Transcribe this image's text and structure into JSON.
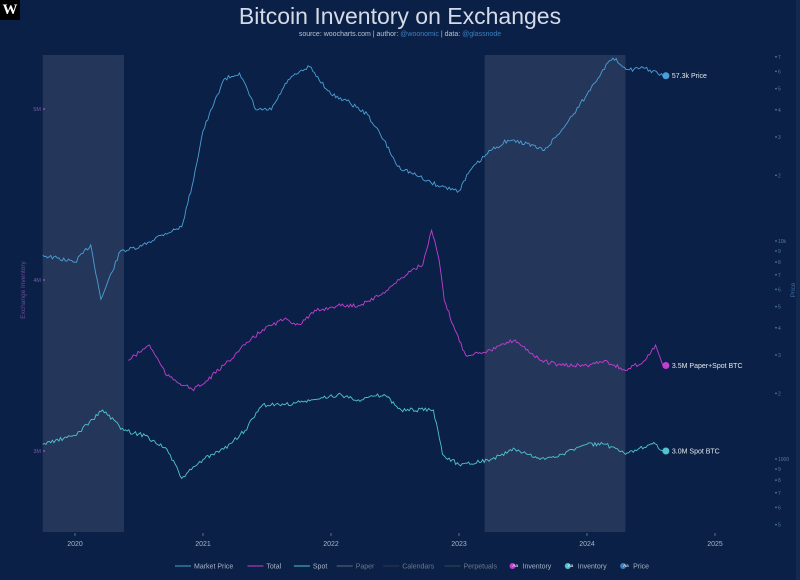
{
  "logo": "W",
  "chart_data": {
    "type": "line",
    "title": "Bitcoin Inventory on Exchanges",
    "subtitle": {
      "source_label": "source:",
      "source": "woocharts.com",
      "author_label": "| author:",
      "author": "@woonomic",
      "data_label": "| data:",
      "data": "@glassnode"
    },
    "x_ticks": [
      "2020",
      "2021",
      "2022",
      "2023",
      "2024",
      "2025"
    ],
    "xlim": [
      "2019-10-01",
      "2025-03-01"
    ],
    "left_axis": {
      "label": "Exchange Inventory",
      "ticks": [
        "3M",
        "4M",
        "5M"
      ],
      "values": [
        3,
        4,
        5
      ],
      "unit": "M BTC",
      "range": [
        2.7,
        5.3
      ]
    },
    "right_axis": {
      "label": "Price",
      "scale": "log",
      "ticks": [
        {
          "v": 500,
          "t": "5"
        },
        {
          "v": 600,
          "t": "6"
        },
        {
          "v": 700,
          "t": "7"
        },
        {
          "v": 800,
          "t": "8"
        },
        {
          "v": 900,
          "t": "9"
        },
        {
          "v": 1000,
          "t": "1000"
        },
        {
          "v": 2000,
          "t": "2"
        },
        {
          "v": 3000,
          "t": "3"
        },
        {
          "v": 4000,
          "t": "4"
        },
        {
          "v": 5000,
          "t": "5"
        },
        {
          "v": 6000,
          "t": "6"
        },
        {
          "v": 7000,
          "t": "7"
        },
        {
          "v": 8000,
          "t": "8"
        },
        {
          "v": 9000,
          "t": "9"
        },
        {
          "v": 10000,
          "t": "10k"
        },
        {
          "v": 20000,
          "t": "2"
        },
        {
          "v": 30000,
          "t": "3"
        },
        {
          "v": 40000,
          "t": "4"
        },
        {
          "v": 50000,
          "t": "5"
        },
        {
          "v": 60000,
          "t": "6"
        },
        {
          "v": 70000,
          "t": "7"
        }
      ]
    },
    "shaded_periods": [
      [
        "2019-10-01",
        "2020-05-20"
      ],
      [
        "2023-03-15",
        "2024-04-20"
      ]
    ],
    "series": [
      {
        "name": "Market Price",
        "axis": "right",
        "color": "#4a9fd6",
        "points": [
          [
            "2019-10-01",
            8600
          ],
          [
            "2020-01-01",
            8000
          ],
          [
            "2020-02-15",
            9600
          ],
          [
            "2020-03-15",
            5400
          ],
          [
            "2020-05-10",
            9000
          ],
          [
            "2020-07-01",
            9300
          ],
          [
            "2020-09-01",
            10600
          ],
          [
            "2020-11-01",
            11600
          ],
          [
            "2020-12-01",
            18000
          ],
          [
            "2021-01-01",
            32000
          ],
          [
            "2021-03-01",
            55000
          ],
          [
            "2021-04-15",
            59000
          ],
          [
            "2021-06-01",
            40000
          ],
          [
            "2021-07-15",
            40000
          ],
          [
            "2021-09-01",
            55000
          ],
          [
            "2021-11-01",
            63000
          ],
          [
            "2022-01-01",
            47000
          ],
          [
            "2022-02-15",
            44000
          ],
          [
            "2022-04-15",
            38000
          ],
          [
            "2022-06-01",
            29000
          ],
          [
            "2022-07-10",
            22000
          ],
          [
            "2022-09-01",
            20000
          ],
          [
            "2022-11-01",
            18000
          ],
          [
            "2023-01-01",
            17000
          ],
          [
            "2023-02-01",
            21000
          ],
          [
            "2023-04-01",
            26000
          ],
          [
            "2023-05-20",
            29000
          ],
          [
            "2023-07-15",
            28000
          ],
          [
            "2023-09-01",
            26000
          ],
          [
            "2023-11-01",
            34000
          ],
          [
            "2024-01-01",
            47000
          ],
          [
            "2024-02-15",
            61000
          ],
          [
            "2024-03-15",
            69000
          ],
          [
            "2024-05-01",
            61000
          ],
          [
            "2024-06-15",
            62000
          ],
          [
            "2024-08-05",
            57300
          ]
        ],
        "end_label": "57.3k Price"
      },
      {
        "name": "Total",
        "axis": "left",
        "color": "#c03fd0",
        "points": [
          [
            "2020-06-01",
            3.53
          ],
          [
            "2020-08-01",
            3.62
          ],
          [
            "2020-09-20",
            3.44
          ],
          [
            "2020-12-01",
            3.36
          ],
          [
            "2021-01-01",
            3.39
          ],
          [
            "2021-03-01",
            3.5
          ],
          [
            "2021-05-01",
            3.62
          ],
          [
            "2021-06-20",
            3.71
          ],
          [
            "2021-08-20",
            3.77
          ],
          [
            "2021-10-01",
            3.74
          ],
          [
            "2021-11-20",
            3.82
          ],
          [
            "2022-01-20",
            3.85
          ],
          [
            "2022-03-20",
            3.85
          ],
          [
            "2022-05-20",
            3.91
          ],
          [
            "2022-07-15",
            4.0
          ],
          [
            "2022-08-20",
            4.06
          ],
          [
            "2022-09-20",
            4.09
          ],
          [
            "2022-10-15",
            4.29
          ],
          [
            "2022-11-05",
            4.12
          ],
          [
            "2022-11-20",
            3.88
          ],
          [
            "2022-12-20",
            3.71
          ],
          [
            "2023-01-20",
            3.56
          ],
          [
            "2023-04-01",
            3.59
          ],
          [
            "2023-06-10",
            3.65
          ],
          [
            "2023-08-20",
            3.53
          ],
          [
            "2023-10-20",
            3.5
          ],
          [
            "2024-01-01",
            3.5
          ],
          [
            "2024-02-20",
            3.53
          ],
          [
            "2024-04-20",
            3.47
          ],
          [
            "2024-06-15",
            3.53
          ],
          [
            "2024-07-15",
            3.62
          ],
          [
            "2024-08-05",
            3.5
          ]
        ],
        "end_label": "3.5M Paper+Spot BTC"
      },
      {
        "name": "Spot",
        "axis": "left",
        "color": "#4fc3cf",
        "points": [
          [
            "2019-10-01",
            3.04
          ],
          [
            "2020-01-01",
            3.09
          ],
          [
            "2020-03-20",
            3.24
          ],
          [
            "2020-05-20",
            3.12
          ],
          [
            "2020-07-20",
            3.09
          ],
          [
            "2020-09-20",
            3.01
          ],
          [
            "2020-11-01",
            2.84
          ],
          [
            "2021-01-01",
            2.95
          ],
          [
            "2021-03-01",
            3.01
          ],
          [
            "2021-05-01",
            3.12
          ],
          [
            "2021-06-20",
            3.27
          ],
          [
            "2021-08-20",
            3.27
          ],
          [
            "2021-11-20",
            3.3
          ],
          [
            "2022-01-20",
            3.33
          ],
          [
            "2022-03-20",
            3.3
          ],
          [
            "2022-06-01",
            3.33
          ],
          [
            "2022-07-20",
            3.24
          ],
          [
            "2022-10-20",
            3.24
          ],
          [
            "2022-11-15",
            2.98
          ],
          [
            "2023-01-01",
            2.92
          ],
          [
            "2023-04-01",
            2.95
          ],
          [
            "2023-06-10",
            3.01
          ],
          [
            "2023-08-20",
            2.95
          ],
          [
            "2023-10-20",
            2.98
          ],
          [
            "2024-01-01",
            3.04
          ],
          [
            "2024-02-20",
            3.04
          ],
          [
            "2024-04-20",
            2.98
          ],
          [
            "2024-07-10",
            3.05
          ],
          [
            "2024-08-05",
            3.0
          ]
        ],
        "end_label": "3.0M Spot BTC"
      }
    ],
    "legend": {
      "placement": "bottom",
      "items": [
        {
          "label": "Market Price",
          "color": "#4a9fd6",
          "kind": "line"
        },
        {
          "label": "Total",
          "color": "#c03fd0",
          "kind": "line"
        },
        {
          "label": "Spot",
          "color": "#4fc3cf",
          "kind": "line"
        },
        {
          "label": "Paper",
          "color": "#5b6b7a",
          "kind": "line",
          "hidden": true
        },
        {
          "label": "Calendars",
          "color": "#3a3450",
          "kind": "line",
          "hidden": true
        },
        {
          "label": "Perpetuals",
          "color": "#27524f",
          "kind": "line",
          "hidden": true
        },
        {
          "label": "Inventory",
          "color": "#c03fd0",
          "kind": "dot",
          "badge": "Aa"
        },
        {
          "label": "Inventory",
          "color": "#4fc3cf",
          "kind": "dot",
          "badge": "Aa"
        },
        {
          "label": "Price",
          "color": "#3f7fbf",
          "kind": "dot",
          "badge": "Aa"
        }
      ]
    },
    "grid": false
  }
}
